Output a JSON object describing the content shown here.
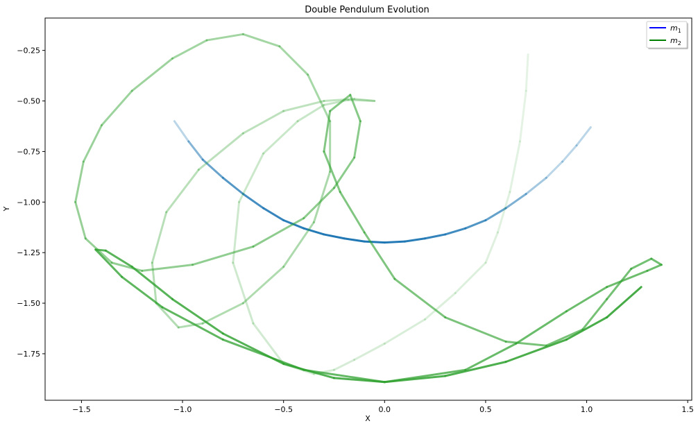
{
  "chart_data": {
    "type": "line",
    "title": "Double Pendulum Evolution",
    "xlabel": "X",
    "ylabel": "Y",
    "xlim": [
      -1.68,
      1.52
    ],
    "ylim": [
      -1.98,
      -0.09
    ],
    "xticks": [
      -1.5,
      -1.0,
      -0.5,
      0.0,
      0.5,
      1.0,
      1.5
    ],
    "yticks": [
      -0.25,
      -0.5,
      -0.75,
      -1.0,
      -1.25,
      -1.5,
      -1.75
    ],
    "xtick_labels": [
      "−1.5",
      "−1.0",
      "−0.5",
      "0.0",
      "0.5",
      "1.0",
      "1.5"
    ],
    "ytick_labels": [
      "−0.25",
      "−0.50",
      "−0.75",
      "−1.00",
      "−1.25",
      "−1.50",
      "−1.75"
    ],
    "grid": false,
    "legend": {
      "position": "top-right",
      "entries": [
        {
          "label": "m",
          "sub": "1",
          "color": "#0000ff"
        },
        {
          "label": "m",
          "sub": "2",
          "color": "#008000"
        }
      ]
    },
    "series": [
      {
        "name": "m1",
        "color": "#1f77b4",
        "points": [
          [
            -1.04,
            -0.6
          ],
          [
            -0.97,
            -0.7
          ],
          [
            -0.9,
            -0.79
          ],
          [
            -0.8,
            -0.88
          ],
          [
            -0.7,
            -0.96
          ],
          [
            -0.6,
            -1.03
          ],
          [
            -0.5,
            -1.09
          ],
          [
            -0.4,
            -1.13
          ],
          [
            -0.3,
            -1.16
          ],
          [
            -0.2,
            -1.18
          ],
          [
            -0.1,
            -1.195
          ],
          [
            0.0,
            -1.2
          ],
          [
            0.1,
            -1.195
          ],
          [
            0.2,
            -1.18
          ],
          [
            0.3,
            -1.16
          ],
          [
            0.4,
            -1.13
          ],
          [
            0.5,
            -1.09
          ],
          [
            0.6,
            -1.03
          ],
          [
            0.7,
            -0.96
          ],
          [
            0.8,
            -0.88
          ],
          [
            0.88,
            -0.8
          ],
          [
            0.95,
            -0.72
          ],
          [
            1.02,
            -0.63
          ]
        ]
      },
      {
        "name": "m2",
        "color": "#2ca02c",
        "points": [
          [
            0.71,
            -0.27
          ],
          [
            0.7,
            -0.45
          ],
          [
            0.67,
            -0.7
          ],
          [
            0.62,
            -0.95
          ],
          [
            0.56,
            -1.15
          ],
          [
            0.5,
            -1.3
          ],
          [
            0.35,
            -1.45
          ],
          [
            0.2,
            -1.58
          ],
          [
            0.0,
            -1.7
          ],
          [
            -0.15,
            -1.78
          ],
          [
            -0.25,
            -1.83
          ],
          [
            -0.35,
            -1.85
          ],
          [
            -0.5,
            -1.8
          ],
          [
            -0.65,
            -1.6
          ],
          [
            -0.75,
            -1.3
          ],
          [
            -0.72,
            -1.0
          ],
          [
            -0.6,
            -0.76
          ],
          [
            -0.43,
            -0.6
          ],
          [
            -0.3,
            -0.52
          ],
          [
            -0.18,
            -0.495
          ],
          [
            -0.05,
            -0.5
          ],
          [
            -0.15,
            -0.49
          ],
          [
            -0.3,
            -0.5
          ],
          [
            -0.5,
            -0.55
          ],
          [
            -0.7,
            -0.66
          ],
          [
            -0.92,
            -0.84
          ],
          [
            -1.08,
            -1.05
          ],
          [
            -1.15,
            -1.3
          ],
          [
            -1.13,
            -1.5
          ],
          [
            -1.02,
            -1.62
          ],
          [
            -0.9,
            -1.6
          ],
          [
            -0.7,
            -1.5
          ],
          [
            -0.5,
            -1.32
          ],
          [
            -0.35,
            -1.1
          ],
          [
            -0.27,
            -0.85
          ],
          [
            -0.27,
            -0.6
          ],
          [
            -0.38,
            -0.37
          ],
          [
            -0.52,
            -0.23
          ],
          [
            -0.7,
            -0.17
          ],
          [
            -0.88,
            -0.2
          ],
          [
            -1.05,
            -0.29
          ],
          [
            -1.25,
            -0.45
          ],
          [
            -1.4,
            -0.62
          ],
          [
            -1.49,
            -0.8
          ],
          [
            -1.53,
            -1.0
          ],
          [
            -1.48,
            -1.18
          ],
          [
            -1.35,
            -1.3
          ],
          [
            -1.2,
            -1.34
          ],
          [
            -0.95,
            -1.31
          ],
          [
            -0.65,
            -1.22
          ],
          [
            -0.4,
            -1.08
          ],
          [
            -0.25,
            -0.93
          ],
          [
            -0.15,
            -0.78
          ],
          [
            -0.12,
            -0.6
          ],
          [
            -0.17,
            -0.47
          ],
          [
            -0.27,
            -0.55
          ],
          [
            -0.3,
            -0.75
          ],
          [
            -0.22,
            -0.95
          ],
          [
            -0.1,
            -1.15
          ],
          [
            0.05,
            -1.38
          ],
          [
            0.3,
            -1.57
          ],
          [
            0.6,
            -1.69
          ],
          [
            0.8,
            -1.71
          ],
          [
            0.98,
            -1.63
          ],
          [
            1.1,
            -1.48
          ],
          [
            1.22,
            -1.33
          ],
          [
            1.32,
            -1.28
          ],
          [
            1.37,
            -1.31
          ],
          [
            1.3,
            -1.34
          ],
          [
            1.1,
            -1.42
          ],
          [
            0.9,
            -1.54
          ],
          [
            0.65,
            -1.7
          ],
          [
            0.4,
            -1.83
          ],
          [
            0.0,
            -1.89
          ],
          [
            -0.4,
            -1.83
          ],
          [
            -0.8,
            -1.68
          ],
          [
            -1.1,
            -1.52
          ],
          [
            -1.3,
            -1.37
          ],
          [
            -1.43,
            -1.235
          ],
          [
            -1.38,
            -1.24
          ],
          [
            -1.25,
            -1.32
          ],
          [
            -1.05,
            -1.48
          ],
          [
            -0.8,
            -1.65
          ],
          [
            -0.5,
            -1.8
          ],
          [
            -0.25,
            -1.87
          ],
          [
            0.0,
            -1.89
          ],
          [
            0.3,
            -1.86
          ],
          [
            0.6,
            -1.79
          ],
          [
            0.9,
            -1.68
          ],
          [
            1.1,
            -1.57
          ],
          [
            1.27,
            -1.42
          ]
        ]
      }
    ]
  }
}
